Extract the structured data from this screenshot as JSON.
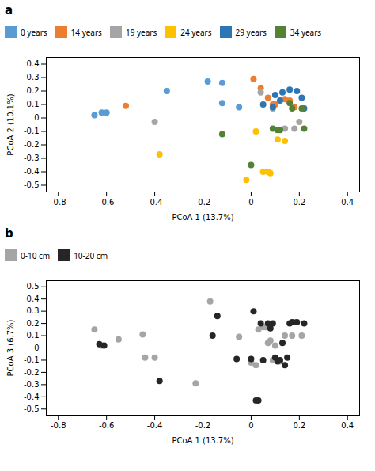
{
  "chart_data": [
    {
      "type": "scatter",
      "title": "a",
      "x_label": "PCoA 1 (13.7%)",
      "y_label": "PCoA 2 (10.1%)",
      "xlim": [
        -0.85,
        0.45
      ],
      "ylim": [
        -0.55,
        0.45
      ],
      "xticks": [
        -0.8,
        -0.6,
        -0.4,
        -0.2,
        0.0,
        0.2,
        0.4
      ],
      "yticks": [
        -0.5,
        -0.4,
        -0.3,
        -0.2,
        -0.1,
        0.0,
        0.1,
        0.2,
        0.3,
        0.4
      ],
      "grid": false,
      "legend": "top",
      "series": [
        {
          "name": "0 years",
          "color": "#5B9BD5",
          "x": [
            -0.65,
            -0.62,
            -0.6,
            -0.35,
            -0.18,
            -0.12,
            -0.12,
            -0.05
          ],
          "y": [
            0.02,
            0.04,
            0.04,
            0.2,
            0.27,
            0.26,
            0.11,
            0.08
          ]
        },
        {
          "name": "14 years",
          "color": "#ED7D31",
          "x": [
            -0.52,
            0.01,
            0.04,
            0.07,
            0.09,
            0.1,
            0.14,
            0.16,
            0.18
          ],
          "y": [
            0.09,
            0.29,
            0.22,
            0.15,
            0.1,
            0.1,
            0.14,
            0.13,
            0.08
          ]
        },
        {
          "name": "19 years",
          "color": "#A5A5A5",
          "x": [
            -0.4,
            0.04,
            0.09,
            0.14,
            0.18,
            0.2
          ],
          "y": [
            -0.03,
            0.19,
            0.07,
            -0.08,
            -0.08,
            -0.03
          ]
        },
        {
          "name": "24 years",
          "color": "#FFC000",
          "x": [
            -0.38,
            -0.02,
            0.02,
            0.05,
            0.07,
            0.08,
            0.11,
            0.14
          ],
          "y": [
            -0.27,
            -0.46,
            -0.1,
            -0.4,
            -0.4,
            -0.41,
            -0.16,
            -0.17
          ]
        },
        {
          "name": "29 years",
          "color": "#2E75B6",
          "x": [
            0.05,
            0.09,
            0.1,
            0.12,
            0.13,
            0.16,
            0.19,
            0.21,
            0.22
          ],
          "y": [
            0.1,
            0.08,
            0.17,
            0.13,
            0.19,
            0.21,
            0.2,
            0.15,
            0.07
          ]
        },
        {
          "name": "34 years",
          "color": "#548235",
          "x": [
            -0.12,
            0.0,
            0.09,
            0.11,
            0.12,
            0.16,
            0.17,
            0.21,
            0.22
          ],
          "y": [
            -0.12,
            -0.35,
            -0.08,
            -0.09,
            -0.09,
            0.11,
            0.07,
            0.07,
            -0.08
          ]
        }
      ]
    },
    {
      "type": "scatter",
      "title": "b",
      "x_label": "PCoA 1 (13.7%)",
      "y_label": "PCoA 3 (6.7%)",
      "xlim": [
        -0.85,
        0.45
      ],
      "ylim": [
        -0.55,
        0.55
      ],
      "xticks": [
        -0.8,
        -0.6,
        -0.4,
        -0.2,
        0.0,
        0.2,
        0.4
      ],
      "yticks": [
        -0.5,
        -0.4,
        -0.3,
        -0.2,
        -0.1,
        0.0,
        0.1,
        0.2,
        0.3,
        0.4,
        0.5
      ],
      "grid": false,
      "legend": "top",
      "series": [
        {
          "name": "0-10 cm",
          "color": "#A5A5A5",
          "x": [
            -0.65,
            -0.62,
            -0.55,
            -0.45,
            -0.44,
            -0.4,
            -0.23,
            -0.17,
            -0.05,
            0.0,
            0.02,
            0.03,
            0.05,
            0.06,
            0.07,
            0.08,
            0.09,
            0.1,
            0.11,
            0.12,
            0.14,
            0.17,
            0.18,
            0.21
          ],
          "y": [
            0.15,
            0.02,
            0.07,
            0.11,
            -0.08,
            -0.08,
            -0.29,
            0.38,
            0.09,
            -0.12,
            -0.14,
            0.15,
            0.17,
            0.17,
            0.04,
            0.06,
            -0.1,
            0.02,
            -0.1,
            -0.11,
            0.1,
            0.1,
            0.21,
            0.1
          ]
        },
        {
          "name": "10-20 cm",
          "color": "#262626",
          "x": [
            -0.63,
            -0.61,
            -0.38,
            -0.16,
            -0.14,
            -0.06,
            0.0,
            0.01,
            0.02,
            0.03,
            0.04,
            0.05,
            0.07,
            0.08,
            0.09,
            0.1,
            0.11,
            0.12,
            0.13,
            0.14,
            0.15,
            0.16,
            0.17,
            0.19,
            0.22
          ],
          "y": [
            0.03,
            0.02,
            -0.27,
            0.1,
            0.26,
            -0.09,
            -0.09,
            0.3,
            -0.43,
            -0.43,
            0.2,
            -0.1,
            0.2,
            0.16,
            0.2,
            -0.08,
            -0.11,
            -0.1,
            0.04,
            -0.14,
            -0.08,
            0.2,
            0.21,
            0.21,
            0.2
          ]
        }
      ]
    }
  ]
}
